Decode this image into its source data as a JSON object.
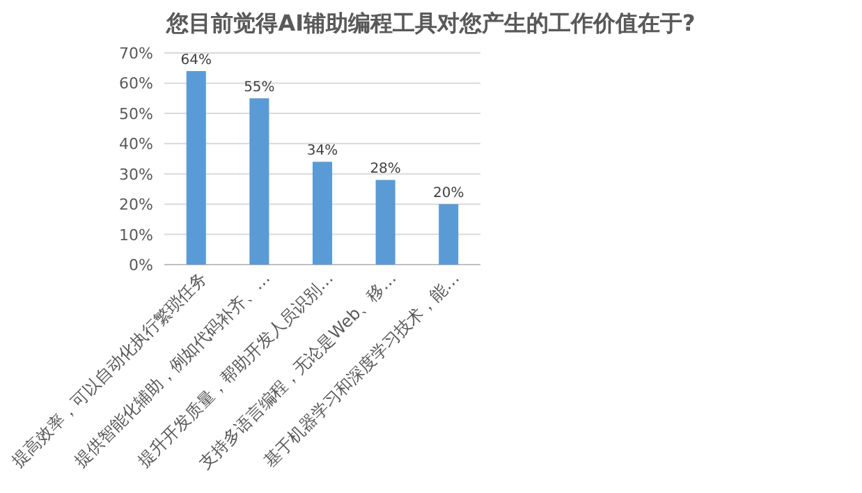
{
  "chart_data": {
    "type": "bar",
    "title": "您目前觉得AI辅助编程工具对您产生的工作价值在于?",
    "categories": [
      "提高效率，可以自动化执行繁琐任务",
      "提供智能化辅助，例如代码补齐、…",
      "提升开发质量，帮助开发人员识别…",
      "支持多语言编程，无论是Web、移…",
      "基于机器学习和深度学习技术，能…"
    ],
    "values": [
      64,
      55,
      34,
      28,
      20
    ],
    "value_labels": [
      "64%",
      "55%",
      "34%",
      "28%",
      "20%"
    ],
    "color": "#5b9bd5",
    "ylim": [
      0,
      70
    ],
    "yticks": [
      {
        "value": 0,
        "label": "0%"
      },
      {
        "value": 10,
        "label": "10%"
      },
      {
        "value": 20,
        "label": "20%"
      },
      {
        "value": 30,
        "label": "30%"
      },
      {
        "value": 40,
        "label": "40%"
      },
      {
        "value": 50,
        "label": "50%"
      },
      {
        "value": 60,
        "label": "60%"
      },
      {
        "value": 70,
        "label": "70%"
      }
    ],
    "grid": "y"
  }
}
